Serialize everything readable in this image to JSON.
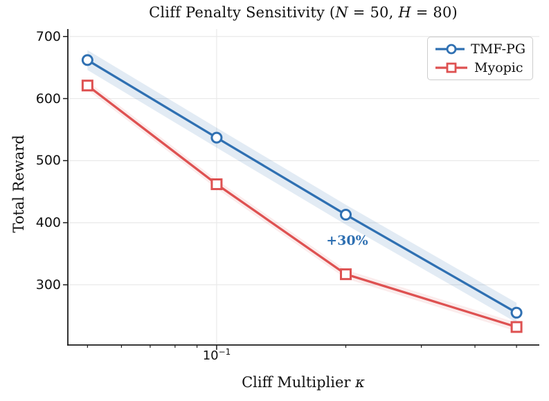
{
  "chart_data": {
    "type": "line",
    "title": "Cliff Penalty Sensitivity (N = 50, H = 80)",
    "title_parts": [
      {
        "text": "Cliff Penalty Sensitivity (",
        "italic": false
      },
      {
        "text": "N",
        "italic": true
      },
      {
        "text": " = 50, ",
        "italic": false
      },
      {
        "text": "H",
        "italic": true
      },
      {
        "text": " = 80)",
        "italic": false
      }
    ],
    "xlabel": "Cliff Multiplier κ",
    "xlabel_parts": [
      {
        "text": "Cliff Multiplier ",
        "italic": false
      },
      {
        "text": "κ",
        "italic": true
      }
    ],
    "ylabel": "Total Reward",
    "xscale": "log",
    "xlim": [
      0.045,
      0.565
    ],
    "ylim": [
      203,
      712
    ],
    "x": [
      0.05,
      0.1,
      0.2,
      0.5
    ],
    "series": [
      {
        "name": "TMF-PG",
        "values": [
          662,
          537,
          413,
          255
        ],
        "color": "#2f70b2",
        "marker": "circle",
        "band_halfwidth": 16,
        "band_alpha": 0.14
      },
      {
        "name": "Myopic",
        "values": [
          621,
          462,
          317,
          232
        ],
        "color": "#de5151",
        "marker": "square",
        "band_halfwidth": 7,
        "band_alpha": 0.11
      }
    ],
    "annotation": {
      "text": "+30%",
      "x": 0.2,
      "y": 371,
      "color": "#2f70b2"
    },
    "yticks": [
      300,
      400,
      500,
      600,
      700
    ],
    "xtick_major": {
      "value": 0.1,
      "base": "10",
      "exponent": "−1"
    },
    "xticks_minor": [
      0.05,
      0.06,
      0.07,
      0.08,
      0.09,
      0.2,
      0.3,
      0.4,
      0.5
    ],
    "grid": true,
    "legend_position": "upper right",
    "colors": {
      "grid": "#e9e9e9",
      "spine": "#1c1c1c",
      "text": "#111111",
      "background": "#ffffff"
    }
  }
}
